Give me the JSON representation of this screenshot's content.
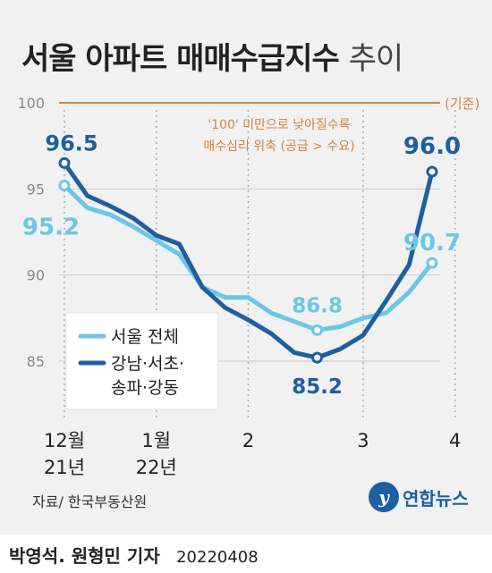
{
  "title": {
    "bold": "서울 아파트 매매수급지수",
    "light": "추이"
  },
  "source": "자료/ 한국부동산원",
  "logo": {
    "badge": "y",
    "text": "연합뉴스"
  },
  "footer": {
    "author": "박영석. 원형민 기자",
    "date": "20220408"
  },
  "colors": {
    "seoul": "#6ec6e6",
    "gangnam": "#1f5f9f",
    "baseline": "#d9823a",
    "grid": "#c9c9cc",
    "axis_text": "#8a8a8a"
  },
  "chart_data": {
    "type": "line",
    "ylim": [
      82,
      103
    ],
    "yticks": [
      100,
      95,
      90,
      85
    ],
    "baseline": {
      "value": 100,
      "label": "(기준)"
    },
    "annotation": [
      "'100' 미만으로 낮아질수록",
      "매수심리 위축 (공급 > 수요)"
    ],
    "xticks": [
      {
        "x": 0,
        "label": [
          "12월",
          "21년"
        ]
      },
      {
        "x": 4,
        "label": [
          "1월",
          "22년"
        ]
      },
      {
        "x": 8,
        "label": [
          "2"
        ]
      },
      {
        "x": 13,
        "label": [
          "3"
        ]
      },
      {
        "x": 17,
        "label": [
          "4"
        ]
      }
    ],
    "series": [
      {
        "name": "서울 전체",
        "values": [
          95.2,
          93.9,
          93.5,
          92.8,
          92.0,
          91.2,
          89.3,
          88.7,
          88.7,
          87.8,
          87.3,
          86.8,
          87.0,
          87.5,
          87.8,
          89.0,
          90.7
        ]
      },
      {
        "name": "강남·서초·송파·강동",
        "values": [
          96.5,
          94.6,
          94.0,
          93.3,
          92.3,
          91.8,
          89.3,
          88.1,
          87.4,
          86.6,
          85.5,
          85.2,
          85.7,
          86.5,
          88.5,
          90.6,
          96.0
        ]
      }
    ],
    "highlights": [
      {
        "series": 0,
        "index": 0,
        "label": "95.2"
      },
      {
        "series": 0,
        "index": 11,
        "label": "86.8"
      },
      {
        "series": 0,
        "index": 16,
        "label": "90.7"
      },
      {
        "series": 1,
        "index": 0,
        "label": "96.5"
      },
      {
        "series": 1,
        "index": 11,
        "label": "85.2"
      },
      {
        "series": 1,
        "index": 16,
        "label": "96.0"
      }
    ],
    "legend": [
      "서울 전체",
      [
        "강남·서초·",
        "송파·강동"
      ]
    ]
  }
}
